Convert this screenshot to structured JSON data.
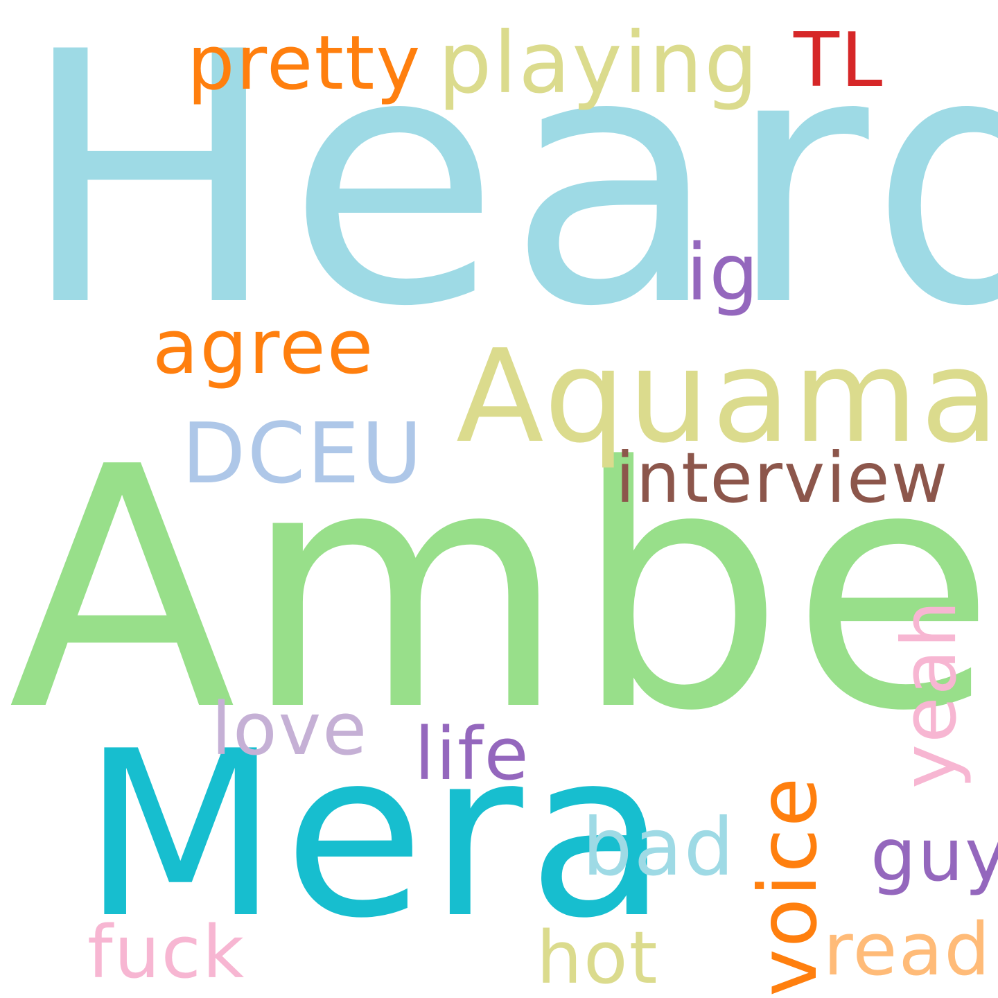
{
  "words": [
    {
      "text": "Heard",
      "color": "#9edae5"
    },
    {
      "text": "Amber",
      "color": "#98df8a"
    },
    {
      "text": "Mera",
      "color": "#17becf"
    },
    {
      "text": "Aquaman",
      "color": "#dbdb8d"
    },
    {
      "text": "playing",
      "color": "#dbdb8d"
    },
    {
      "text": "pretty",
      "color": "#ff7f0e"
    },
    {
      "text": "TL",
      "color": "#d62728"
    },
    {
      "text": "ig",
      "color": "#9467bd"
    },
    {
      "text": "agree",
      "color": "#ff7f0e"
    },
    {
      "text": "DCEU",
      "color": "#aec7e8"
    },
    {
      "text": "interview",
      "color": "#8c564b"
    },
    {
      "text": "voice",
      "color": "#ff7f0e"
    },
    {
      "text": "yeah",
      "color": "#f7b6d2"
    },
    {
      "text": "love",
      "color": "#c5b0d5"
    },
    {
      "text": "life",
      "color": "#9467bd"
    },
    {
      "text": "bad",
      "color": "#9edae5"
    },
    {
      "text": "guy",
      "color": "#9467bd"
    },
    {
      "text": "fuck",
      "color": "#f7b6d2"
    },
    {
      "text": "hot",
      "color": "#dbdb8d"
    },
    {
      "text": "read",
      "color": "#ffbb78"
    }
  ]
}
